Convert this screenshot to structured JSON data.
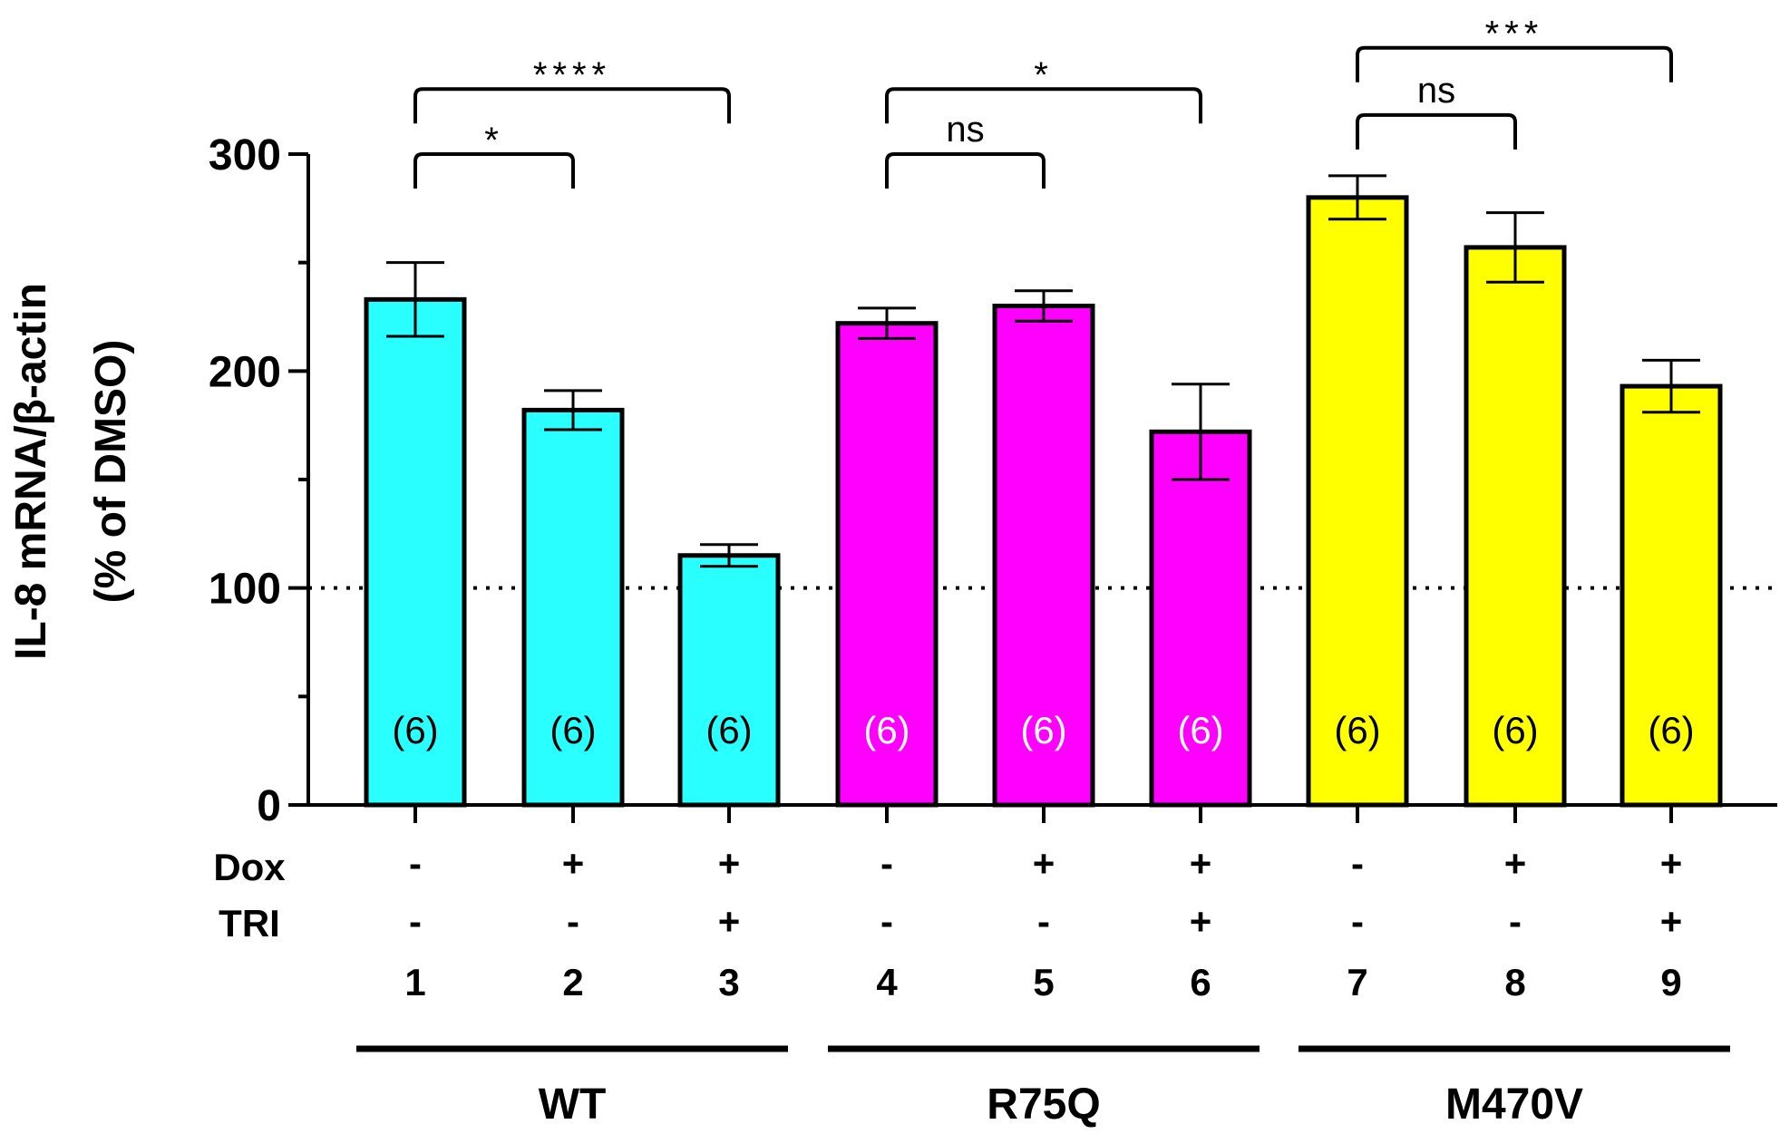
{
  "chart_data": {
    "type": "bar",
    "ylabel_line1": "IL-8 mRNA/β-actin",
    "ylabel_line2": "(% of DMSO)",
    "ylim": [
      0,
      300
    ],
    "yticks": [
      0,
      100,
      200,
      300
    ],
    "minor_yticks": [
      50,
      150,
      250
    ],
    "reference_line": 100,
    "row_labels": [
      "Dox",
      "TRI"
    ],
    "bars": [
      {
        "lane": "1",
        "group": "WT",
        "value": 233,
        "error": 17,
        "n": "(6)",
        "dox": "-",
        "tri": "-",
        "color": "#2affff",
        "n_color": "#000000"
      },
      {
        "lane": "2",
        "group": "WT",
        "value": 182,
        "error": 9,
        "n": "(6)",
        "dox": "+",
        "tri": "-",
        "color": "#2affff",
        "n_color": "#000000"
      },
      {
        "lane": "3",
        "group": "WT",
        "value": 115,
        "error": 5,
        "n": "(6)",
        "dox": "+",
        "tri": "+",
        "color": "#2affff",
        "n_color": "#000000"
      },
      {
        "lane": "4",
        "group": "R75Q",
        "value": 222,
        "error": 7,
        "n": "(6)",
        "dox": "-",
        "tri": "-",
        "color": "#ff00ff",
        "n_color": "#ffffff"
      },
      {
        "lane": "5",
        "group": "R75Q",
        "value": 230,
        "error": 7,
        "n": "(6)",
        "dox": "+",
        "tri": "-",
        "color": "#ff00ff",
        "n_color": "#ffffff"
      },
      {
        "lane": "6",
        "group": "R75Q",
        "value": 172,
        "error": 22,
        "n": "(6)",
        "dox": "+",
        "tri": "+",
        "color": "#ff00ff",
        "n_color": "#ffffff"
      },
      {
        "lane": "7",
        "group": "M470V",
        "value": 280,
        "error": 10,
        "n": "(6)",
        "dox": "-",
        "tri": "-",
        "color": "#ffff00",
        "n_color": "#000000"
      },
      {
        "lane": "8",
        "group": "M470V",
        "value": 257,
        "error": 16,
        "n": "(6)",
        "dox": "+",
        "tri": "-",
        "color": "#ffff00",
        "n_color": "#000000"
      },
      {
        "lane": "9",
        "group": "M470V",
        "value": 193,
        "error": 12,
        "n": "(6)",
        "dox": "+",
        "tri": "+",
        "color": "#ffff00",
        "n_color": "#000000"
      }
    ],
    "groups": [
      {
        "name": "WT",
        "from": 0,
        "to": 2
      },
      {
        "name": "R75Q",
        "from": 3,
        "to": 5
      },
      {
        "name": "M470V",
        "from": 6,
        "to": 8
      }
    ],
    "significance": [
      {
        "from": 0,
        "to": 1,
        "label": "*",
        "level": 300
      },
      {
        "from": 0,
        "to": 2,
        "label": "****",
        "level": 330
      },
      {
        "from": 3,
        "to": 4,
        "label": "ns",
        "level": 300
      },
      {
        "from": 3,
        "to": 5,
        "label": "*",
        "level": 330
      },
      {
        "from": 6,
        "to": 7,
        "label": "ns",
        "level": 318
      },
      {
        "from": 6,
        "to": 8,
        "label": "***",
        "level": 349
      }
    ]
  }
}
